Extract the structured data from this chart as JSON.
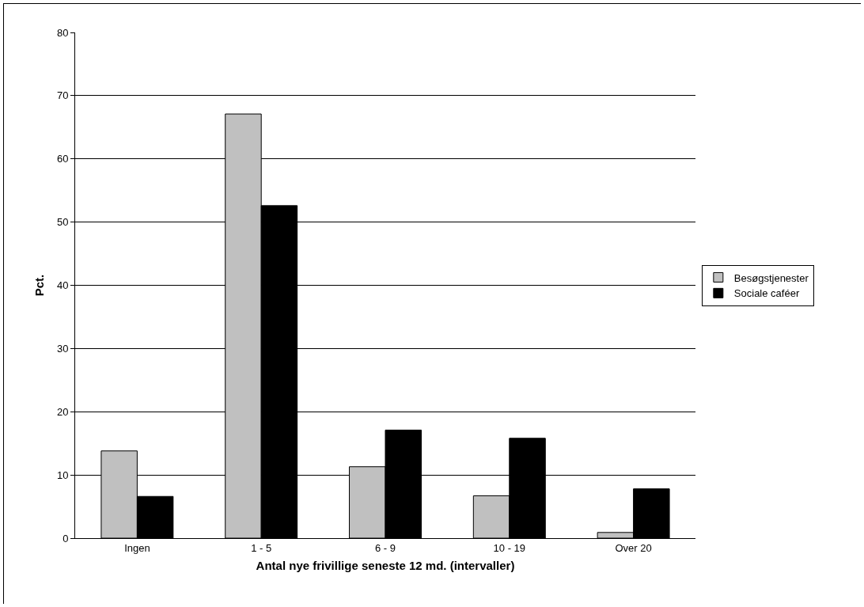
{
  "chart_data": {
    "type": "bar",
    "xlabel": "Antal nye frivillige seneste 12 md. (intervaller)",
    "ylabel": "Pct.",
    "categories": [
      "Ingen",
      "1 - 5",
      "6 - 9",
      "10 - 19",
      "Over 20"
    ],
    "series": [
      {
        "name": "Besøgstjenester",
        "color": "#c0c0c0",
        "values": [
          13.8,
          67.1,
          11.3,
          6.7,
          0.9
        ]
      },
      {
        "name": "Sociale caféer",
        "color": "#000000",
        "values": [
          6.6,
          52.6,
          17.1,
          15.8,
          7.8
        ]
      }
    ],
    "ylim": [
      0,
      80
    ],
    "yticks": [
      0,
      10,
      20,
      30,
      40,
      50,
      60,
      70,
      80
    ],
    "grid": "y",
    "legend": "right"
  }
}
